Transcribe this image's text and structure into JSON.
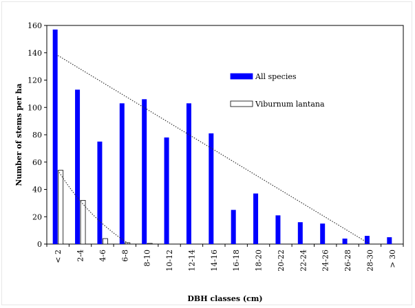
{
  "chart_data": {
    "type": "bar",
    "title": "",
    "xlabel": "DBH classes (cm)",
    "ylabel": "Number of stems per ha",
    "ylim": [
      0,
      160
    ],
    "yticks": [
      0,
      20,
      40,
      60,
      80,
      100,
      120,
      140,
      160
    ],
    "categories": [
      "< 2",
      "2-4",
      "4-6",
      "6-8",
      "8-10",
      "10-12",
      "12-14",
      "14-16",
      "16-18",
      "18-20",
      "20-22",
      "22-24",
      "24-26",
      "26-28",
      "28-30",
      "> 30"
    ],
    "series": [
      {
        "name": "All species",
        "color": "#0000ff",
        "values": [
          157,
          113,
          75,
          103,
          106,
          78,
          103,
          81,
          25,
          37,
          21,
          16,
          15,
          4,
          6,
          5
        ]
      },
      {
        "name": "Viburnum lantana",
        "color": "#ffffff",
        "stroke": "#000000",
        "values": [
          54,
          32,
          4,
          1,
          0.5,
          0,
          0,
          0,
          0,
          0,
          0,
          0,
          0,
          0,
          0,
          0
        ]
      }
    ],
    "trendlines": [
      {
        "series": "All species",
        "style": "dotted",
        "start": 138,
        "end": 0
      },
      {
        "series": "Viburnum lantana",
        "style": "dotted",
        "start": 54,
        "end": 0
      }
    ],
    "grid": false,
    "legend_position": "right"
  }
}
